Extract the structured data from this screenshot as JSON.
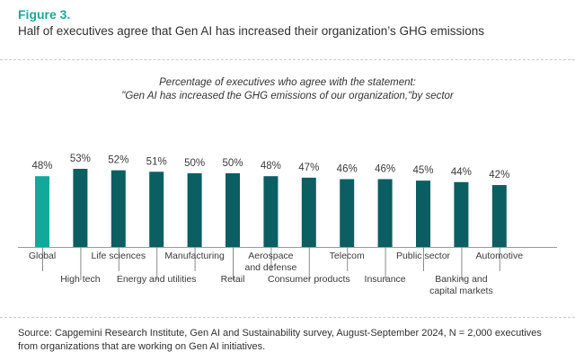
{
  "figure_label": "Figure 3.",
  "title": "Half of executives agree that Gen AI has increased their organization’s GHG emissions",
  "subtitle_line1": "Percentage of executives who agree with the statement:",
  "subtitle_line2": "\"Gen AI has increased the GHG emissions of our organization,\"by sector",
  "source": "Source: Capgemini Research Institute, Gen AI and Sustainability survey, August-September 2024, N = 2,000 executives from organizations that are working on Gen AI initiatives.",
  "colors": {
    "highlight": "#12a89b",
    "bar": "#0b5e61",
    "label": "#3a3a3a",
    "axis": "#6a6a6a"
  },
  "chart_data": {
    "type": "bar",
    "categories": [
      [
        "Global"
      ],
      [
        "High tech"
      ],
      [
        "Life sciences"
      ],
      [
        "Energy and utilities"
      ],
      [
        "Manufacturing"
      ],
      [
        "Retail"
      ],
      [
        "Aerospace",
        "and defense"
      ],
      [
        "Consumer products"
      ],
      [
        "Telecom"
      ],
      [
        "Insurance"
      ],
      [
        "Public sector"
      ],
      [
        "Banking and",
        "capital markets"
      ],
      [
        "Automotive"
      ]
    ],
    "values": [
      48,
      53,
      52,
      51,
      50,
      50,
      48,
      47,
      46,
      46,
      45,
      44,
      42
    ],
    "value_labels": [
      "48%",
      "53%",
      "52%",
      "51%",
      "50%",
      "50%",
      "48%",
      "47%",
      "46%",
      "46%",
      "45%",
      "44%",
      "42%"
    ],
    "highlight_index": 0,
    "ylim": [
      0,
      60
    ],
    "grid": false
  }
}
